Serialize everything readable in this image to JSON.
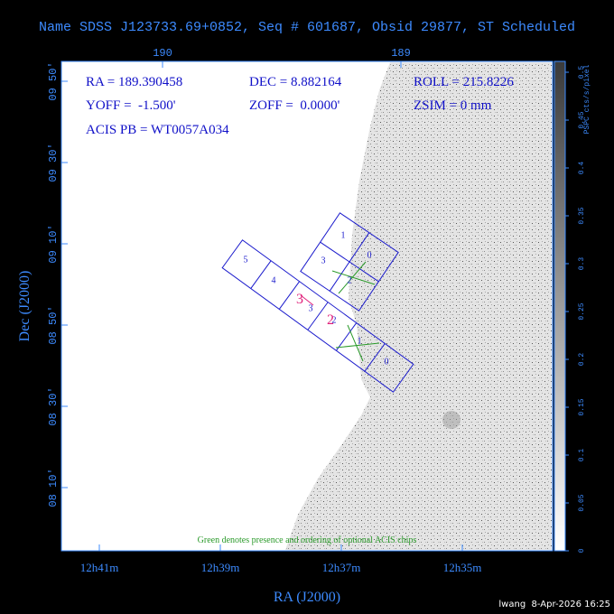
{
  "title": "Name SDSS J123733.69+0852, Seq # 601687, Obsid 29877, ST Scheduled",
  "info": [
    "RA = 189.390458",
    "DEC = 8.882164",
    "ROLL = 215.8226",
    "YOFF =  -1.500'",
    "ZOFF =  0.0000'",
    "ZSIM = 0 mm",
    "ACIS PB = WT0057A034"
  ],
  "top_axis_labels": [
    "190",
    "189"
  ],
  "left_axis_labels": [
    "08 10'",
    "08 30'",
    "08 50'",
    "09 10'",
    "09 30'",
    "09 50'"
  ],
  "bottom_axis_labels": [
    "12h41m",
    "12h39m",
    "12h37m",
    "12h35m"
  ],
  "x_axis_title": "RA (J2000)",
  "y_axis_title": "Dec (J2000)",
  "colorbar": {
    "title": "PSPC cts/s/pixel",
    "labels": [
      "0",
      "0.05",
      "0.1",
      "0.15",
      "0.2",
      "0.25",
      "0.3",
      "0.35",
      "0.4",
      "0.45",
      "0.5"
    ]
  },
  "i_array_labels": [
    "1",
    "0",
    "3",
    "2"
  ],
  "s_array_labels": [
    "5",
    "4",
    "3",
    "2",
    "1",
    "0"
  ],
  "aimpoint_labels": [
    "3",
    "2"
  ],
  "note": "Green denotes presence and ordering of optional ACIS chips",
  "footer": "lwang  8-Apr-2026 16:25"
}
